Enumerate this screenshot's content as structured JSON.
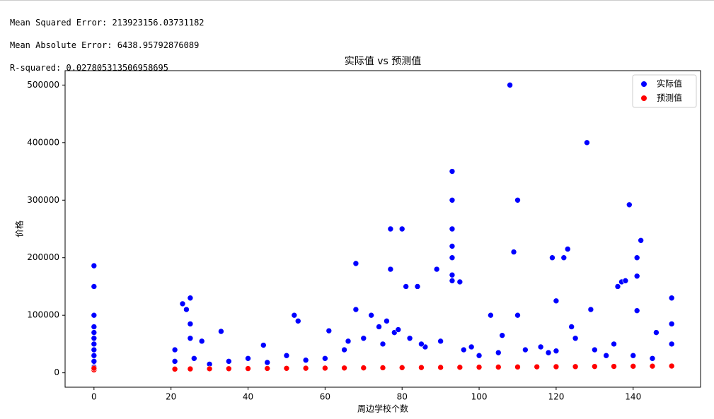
{
  "output_lines": [
    "Mean Squared Error: 213923156.03731182",
    "Mean Absolute Error: 6438.95792876089",
    "R-squared: 0.027805313506958695"
  ],
  "chart_data": {
    "type": "scatter",
    "title": "实际值 vs 预测值",
    "x_label": "周边学校个数",
    "y_label": "价格",
    "xlim": [
      -7.5,
      157.5
    ],
    "ylim": [
      -25000,
      525000
    ],
    "xticks": [
      0,
      20,
      40,
      60,
      80,
      100,
      120,
      140
    ],
    "yticks": [
      0,
      100000,
      200000,
      300000,
      400000,
      500000
    ],
    "legend": "upper right",
    "series": [
      {
        "name": "实际值",
        "color": "#0000ff",
        "x": [
          0,
          0,
          0,
          0,
          0,
          0,
          0,
          0,
          0,
          0,
          0,
          21,
          23,
          24,
          25,
          25,
          25,
          28,
          33,
          44,
          52,
          53,
          61,
          68,
          68,
          72,
          77,
          77,
          80,
          81,
          84,
          89,
          93,
          93,
          93,
          93,
          93,
          93,
          93,
          95,
          103,
          108,
          109,
          110,
          110,
          119,
          120,
          122,
          123,
          128,
          129,
          136,
          137,
          138,
          139,
          141,
          141,
          141,
          142,
          150,
          150,
          21,
          26,
          30,
          35,
          40,
          45,
          50,
          55,
          60,
          65,
          70,
          75,
          78,
          82,
          86,
          90,
          96,
          100,
          105,
          112,
          116,
          120,
          125,
          130,
          135,
          140,
          145,
          150,
          66,
          74,
          76,
          79,
          85,
          98,
          106,
          118,
          124,
          133,
          146
        ],
        "values": [
          186000,
          150000,
          100000,
          80000,
          70000,
          60000,
          50000,
          40000,
          30000,
          20000,
          10000,
          40000,
          120000,
          110000,
          130000,
          85000,
          60000,
          55000,
          72000,
          48000,
          100000,
          90000,
          73000,
          190000,
          110000,
          100000,
          250000,
          180000,
          250000,
          150000,
          150000,
          180000,
          350000,
          300000,
          250000,
          220000,
          200000,
          170000,
          160000,
          158000,
          100000,
          500000,
          210000,
          300000,
          100000,
          200000,
          125000,
          200000,
          215000,
          400000,
          110000,
          150000,
          158000,
          160000,
          292000,
          200000,
          168000,
          108000,
          230000,
          130000,
          85000,
          20000,
          25000,
          15000,
          20000,
          25000,
          18000,
          30000,
          22000,
          25000,
          40000,
          60000,
          50000,
          70000,
          60000,
          45000,
          55000,
          40000,
          30000,
          35000,
          40000,
          45000,
          38000,
          60000,
          40000,
          50000,
          30000,
          25000,
          50000,
          55000,
          80000,
          90000,
          75000,
          50000,
          45000,
          65000,
          35000,
          80000,
          30000,
          70000
        ]
      },
      {
        "name": "预测值",
        "color": "#ff0000",
        "x": [
          0,
          0,
          21,
          25,
          30,
          35,
          40,
          45,
          50,
          55,
          60,
          65,
          70,
          75,
          80,
          85,
          90,
          95,
          100,
          105,
          110,
          115,
          120,
          125,
          130,
          135,
          140,
          145,
          150
        ],
        "values": [
          5000,
          8000,
          6500,
          6800,
          7000,
          7200,
          7400,
          7600,
          7800,
          8000,
          8200,
          8400,
          8600,
          8800,
          9000,
          9200,
          9400,
          9600,
          9800,
          10000,
          10200,
          10400,
          10600,
          10800,
          11000,
          11200,
          11400,
          11600,
          11800
        ]
      }
    ]
  }
}
